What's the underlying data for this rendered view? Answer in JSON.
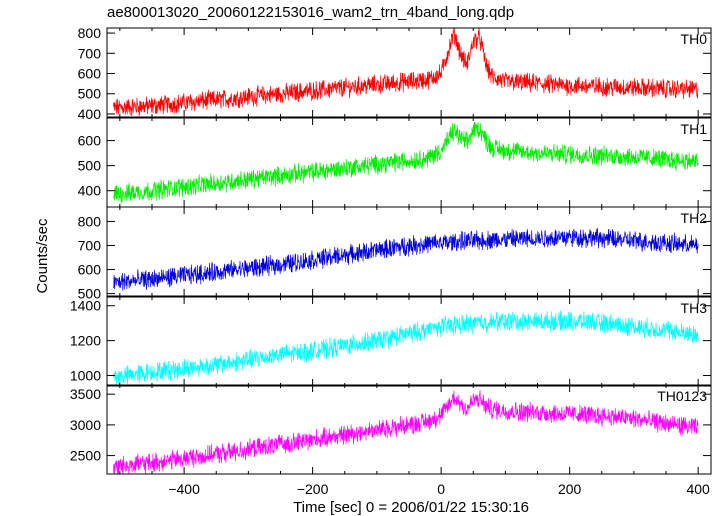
{
  "chart_data": {
    "type": "line",
    "title": "ae800013020_20060122153016_wam2_trn_4band_long.qdp",
    "xlabel": "Time [sec] 0 = 2006/01/22 15:30:16",
    "ylabel": "Counts/sec",
    "xlim": [
      -520,
      420
    ],
    "xticks": [
      -400,
      -200,
      0,
      200,
      400
    ],
    "xtick_labels": [
      "−400",
      "−200",
      "0",
      "200",
      "400"
    ],
    "panels": [
      {
        "name": "TH0",
        "color": "#ff0000",
        "ylim": [
          385,
          825
        ],
        "yticks": [
          400,
          500,
          600,
          700,
          800
        ],
        "x": [
          -510,
          -450,
          -400,
          -350,
          -300,
          -250,
          -200,
          -150,
          -100,
          -50,
          -20,
          0,
          10,
          20,
          30,
          40,
          50,
          60,
          70,
          80,
          100,
          150,
          200,
          250,
          300,
          350,
          400
        ],
        "y": [
          430,
          440,
          455,
          470,
          485,
          500,
          515,
          530,
          545,
          560,
          570,
          600,
          700,
          800,
          700,
          640,
          760,
          780,
          640,
          580,
          560,
          550,
          540,
          535,
          530,
          525,
          520
        ]
      },
      {
        "name": "TH1",
        "color": "#00ee00",
        "ylim": [
          335,
          690
        ],
        "yticks": [
          400,
          500,
          600
        ],
        "x": [
          -510,
          -450,
          -400,
          -350,
          -300,
          -250,
          -200,
          -150,
          -100,
          -50,
          -20,
          0,
          10,
          20,
          30,
          40,
          50,
          60,
          70,
          80,
          100,
          150,
          200,
          250,
          300,
          350,
          400
        ],
        "y": [
          385,
          400,
          415,
          430,
          445,
          460,
          475,
          490,
          505,
          520,
          530,
          560,
          600,
          640,
          610,
          590,
          640,
          650,
          600,
          570,
          560,
          550,
          545,
          540,
          535,
          525,
          515
        ]
      },
      {
        "name": "TH2",
        "color": "#0000dd",
        "ylim": [
          490,
          860
        ],
        "yticks": [
          500,
          600,
          700,
          800
        ],
        "x": [
          -510,
          -450,
          -400,
          -350,
          -300,
          -250,
          -200,
          -150,
          -100,
          -50,
          0,
          50,
          100,
          150,
          200,
          250,
          300,
          350,
          400
        ],
        "y": [
          545,
          560,
          575,
          590,
          605,
          620,
          640,
          660,
          680,
          700,
          710,
          720,
          725,
          730,
          735,
          730,
          720,
          710,
          700
        ]
      },
      {
        "name": "TH3",
        "color": "#00ffff",
        "ylim": [
          940,
          1450
        ],
        "yticks": [
          1000,
          1200,
          1400
        ],
        "x": [
          -510,
          -450,
          -400,
          -350,
          -300,
          -250,
          -200,
          -150,
          -100,
          -50,
          0,
          50,
          100,
          150,
          200,
          250,
          300,
          350,
          400
        ],
        "y": [
          990,
          1020,
          1040,
          1060,
          1090,
          1120,
          1140,
          1170,
          1200,
          1240,
          1280,
          1300,
          1310,
          1310,
          1310,
          1300,
          1280,
          1260,
          1230
        ]
      },
      {
        "name": "TH0123",
        "color": "#ff00ff",
        "ylim": [
          2200,
          3650
        ],
        "yticks": [
          2500,
          3000,
          3500
        ],
        "x": [
          -510,
          -450,
          -400,
          -350,
          -300,
          -250,
          -200,
          -150,
          -100,
          -50,
          -20,
          0,
          10,
          20,
          30,
          40,
          50,
          60,
          70,
          80,
          100,
          150,
          200,
          250,
          300,
          350,
          400
        ],
        "y": [
          2320,
          2380,
          2450,
          2520,
          2600,
          2680,
          2760,
          2840,
          2920,
          3000,
          3060,
          3150,
          3300,
          3450,
          3350,
          3250,
          3400,
          3420,
          3300,
          3250,
          3230,
          3200,
          3180,
          3150,
          3100,
          3020,
          2950
        ]
      }
    ]
  }
}
